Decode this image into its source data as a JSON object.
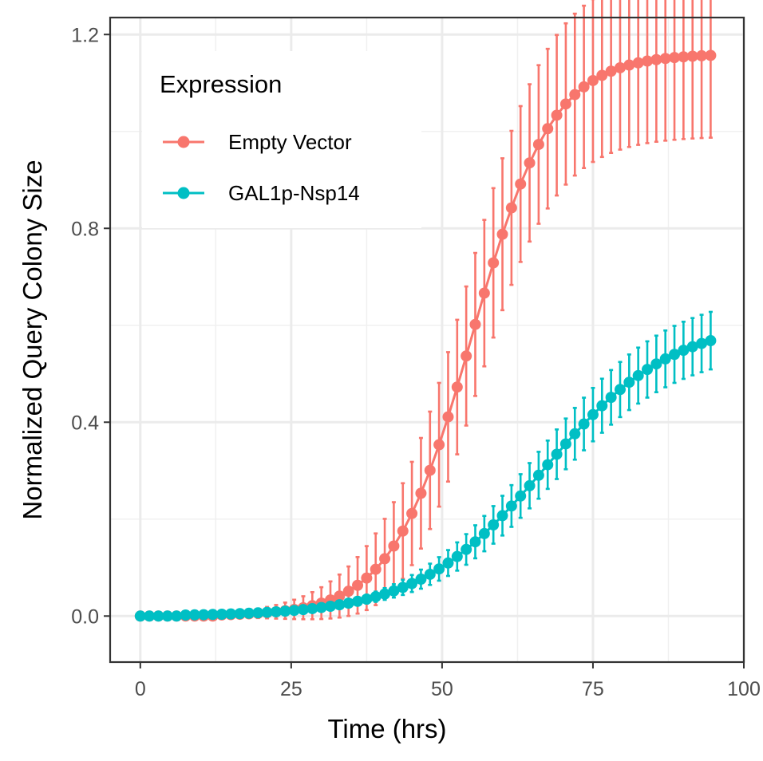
{
  "chart_data": {
    "type": "line",
    "xlabel": "Time (hrs)",
    "ylabel": "Normalized Query Colony Size",
    "xlim": [
      -5,
      100
    ],
    "ylim": [
      -0.095,
      1.235
    ],
    "x_ticks": [
      0,
      25,
      50,
      75,
      100
    ],
    "y_ticks": [
      0.0,
      0.4,
      0.8,
      1.2
    ],
    "grid": true,
    "legend": {
      "title": "Expression",
      "position": "top-left",
      "entries": [
        "Empty Vector",
        "GAL1p-Nsp14"
      ]
    },
    "x_step": 1.5,
    "x_start": 0,
    "x_end": 95.5,
    "series": [
      {
        "name": "Empty Vector",
        "color": "#F8766D",
        "midpoint_hours": 55,
        "max_value": 1.16,
        "error_max": 0.17,
        "points_note": "sigmoid growth from 0 at ~35 hrs to 1.14 at 95 hrs"
      },
      {
        "name": "GAL1p-Nsp14",
        "color": "#00BFC4",
        "midpoint_hours": 67,
        "max_value": 0.61,
        "error_max": 0.06,
        "points_note": "sigmoid growth from 0 at ~45 hrs to 0.59 at 95 hrs"
      }
    ]
  }
}
